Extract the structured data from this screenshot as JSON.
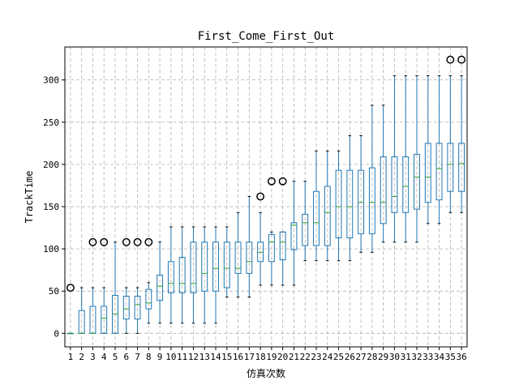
{
  "chart_data": {
    "type": "box",
    "title": "First_Come_First_Out",
    "xlabel": "仿真次数",
    "ylabel": "TrackTime",
    "ylim": [
      -16,
      339
    ],
    "yticks": [
      0,
      50,
      100,
      150,
      200,
      250,
      300
    ],
    "grid": true,
    "grid_style": "dashed",
    "categories": [
      "1",
      "2",
      "3",
      "4",
      "5",
      "6",
      "7",
      "8",
      "9",
      "10",
      "11",
      "12",
      "13",
      "14",
      "15",
      "16",
      "17",
      "18",
      "19",
      "20",
      "21",
      "22",
      "23",
      "24",
      "25",
      "26",
      "27",
      "28",
      "29",
      "30",
      "31",
      "32",
      "33",
      "34",
      "35",
      "36"
    ],
    "boxes": [
      {
        "whislo": 0,
        "q1": 0,
        "med": 0,
        "q3": 0,
        "whishi": 0,
        "fliers": [
          54
        ]
      },
      {
        "whislo": 0,
        "q1": 0,
        "med": 0,
        "q3": 27,
        "whishi": 54,
        "fliers": []
      },
      {
        "whislo": 0,
        "q1": 0,
        "med": 0,
        "q3": 32,
        "whishi": 54,
        "fliers": [
          108
        ]
      },
      {
        "whislo": 0,
        "q1": 0,
        "med": 18,
        "q3": 32,
        "whishi": 54,
        "fliers": [
          108
        ]
      },
      {
        "whislo": 0,
        "q1": 0,
        "med": 23,
        "q3": 45,
        "whishi": 108,
        "fliers": []
      },
      {
        "whislo": 0,
        "q1": 17,
        "med": 29,
        "q3": 44,
        "whishi": 54,
        "fliers": [
          108
        ]
      },
      {
        "whislo": 0,
        "q1": 17,
        "med": 34,
        "q3": 44,
        "whishi": 54,
        "fliers": [
          108
        ]
      },
      {
        "whislo": 12,
        "q1": 29,
        "med": 36,
        "q3": 52,
        "whishi": 60,
        "fliers": [
          108
        ]
      },
      {
        "whislo": 12,
        "q1": 39,
        "med": 56,
        "q3": 69,
        "whishi": 108,
        "fliers": []
      },
      {
        "whislo": 12,
        "q1": 48,
        "med": 59,
        "q3": 85,
        "whishi": 126,
        "fliers": []
      },
      {
        "whislo": 12,
        "q1": 48,
        "med": 59,
        "q3": 90,
        "whishi": 126,
        "fliers": []
      },
      {
        "whislo": 12,
        "q1": 48,
        "med": 59,
        "q3": 108,
        "whishi": 126,
        "fliers": []
      },
      {
        "whislo": 12,
        "q1": 50,
        "med": 71,
        "q3": 108,
        "whishi": 126,
        "fliers": []
      },
      {
        "whislo": 12,
        "q1": 50,
        "med": 77,
        "q3": 108,
        "whishi": 126,
        "fliers": []
      },
      {
        "whislo": 43,
        "q1": 54,
        "med": 77,
        "q3": 108,
        "whishi": 126,
        "fliers": []
      },
      {
        "whislo": 43,
        "q1": 71,
        "med": 77,
        "q3": 108,
        "whishi": 143,
        "fliers": []
      },
      {
        "whislo": 43,
        "q1": 71,
        "med": 85,
        "q3": 108,
        "whishi": 162,
        "fliers": []
      },
      {
        "whislo": 57,
        "q1": 85,
        "med": 96,
        "q3": 108,
        "whishi": 143,
        "fliers": [
          162
        ]
      },
      {
        "whislo": 57,
        "q1": 85,
        "med": 108,
        "q3": 117,
        "whishi": 120,
        "fliers": [
          180
        ]
      },
      {
        "whislo": 57,
        "q1": 87,
        "med": 108,
        "q3": 120,
        "whishi": 120,
        "fliers": [
          180
        ]
      },
      {
        "whislo": 57,
        "q1": 99,
        "med": 128,
        "q3": 131,
        "whishi": 180,
        "fliers": []
      },
      {
        "whislo": 86,
        "q1": 104,
        "med": 131,
        "q3": 141,
        "whishi": 180,
        "fliers": []
      },
      {
        "whislo": 86,
        "q1": 104,
        "med": 131,
        "q3": 168,
        "whishi": 216,
        "fliers": []
      },
      {
        "whislo": 86,
        "q1": 104,
        "med": 143,
        "q3": 174,
        "whishi": 216,
        "fliers": []
      },
      {
        "whislo": 86,
        "q1": 113,
        "med": 150,
        "q3": 193,
        "whishi": 216,
        "fliers": []
      },
      {
        "whislo": 86,
        "q1": 113,
        "med": 150,
        "q3": 193,
        "whishi": 234,
        "fliers": []
      },
      {
        "whislo": 96,
        "q1": 118,
        "med": 155,
        "q3": 193,
        "whishi": 234,
        "fliers": []
      },
      {
        "whislo": 96,
        "q1": 118,
        "med": 155,
        "q3": 196,
        "whishi": 270,
        "fliers": []
      },
      {
        "whislo": 108,
        "q1": 130,
        "med": 155,
        "q3": 209,
        "whishi": 270,
        "fliers": []
      },
      {
        "whislo": 108,
        "q1": 143,
        "med": 162,
        "q3": 209,
        "whishi": 305,
        "fliers": []
      },
      {
        "whislo": 108,
        "q1": 143,
        "med": 174,
        "q3": 209,
        "whishi": 305,
        "fliers": []
      },
      {
        "whislo": 108,
        "q1": 147,
        "med": 185,
        "q3": 212,
        "whishi": 305,
        "fliers": []
      },
      {
        "whislo": 130,
        "q1": 155,
        "med": 185,
        "q3": 225,
        "whishi": 305,
        "fliers": []
      },
      {
        "whislo": 130,
        "q1": 158,
        "med": 195,
        "q3": 225,
        "whishi": 305,
        "fliers": []
      },
      {
        "whislo": 143,
        "q1": 168,
        "med": 200,
        "q3": 225,
        "whishi": 305,
        "fliers": [
          324
        ]
      },
      {
        "whislo": 143,
        "q1": 168,
        "med": 201,
        "q3": 225,
        "whishi": 305,
        "fliers": [
          324
        ]
      }
    ],
    "colors": {
      "box": "#1f77b4",
      "median": "#2ca02c",
      "whisker": "#1f77b4",
      "cap": "#000000",
      "flier": "#000000",
      "grid": "#b0b0b0"
    }
  }
}
